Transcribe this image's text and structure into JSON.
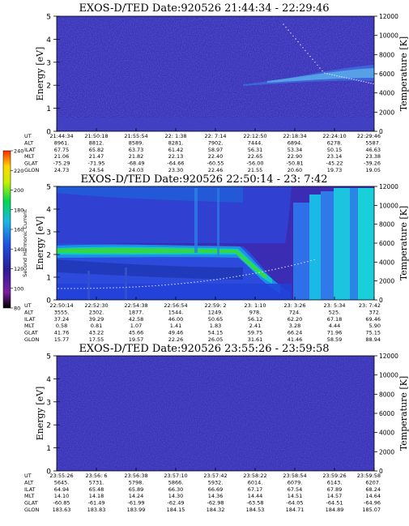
{
  "chart_data": [
    {
      "type": "heatmap",
      "title": "EXOS-D/TED   Date:920526  21:44:34 - 22:29:46",
      "ylabel": "Energy [eV]",
      "y2label": "Temperature [K]",
      "ylim": [
        0,
        5
      ],
      "y2lim": [
        0,
        12000
      ],
      "yticks": [
        "0",
        "1",
        "2",
        "3",
        "4",
        "5"
      ],
      "y2ticks": [
        "0",
        "2000",
        "4000",
        "6000",
        "8000",
        "10000",
        "12000"
      ],
      "table": {
        "labels": [
          "UT",
          "ALT",
          "ILAT",
          "MLT",
          "GLAT",
          "GLON"
        ],
        "columns": [
          [
            "21:44:34",
            "8961.",
            "67.75",
            "21.06",
            "-75.29",
            "24.73"
          ],
          [
            "21:50:18",
            "8812.",
            "65.82",
            "21.47",
            "-71.95",
            "24.54"
          ],
          [
            "21:55:54",
            "8589.",
            "63.73",
            "21.82",
            "-68.49",
            "24.03"
          ],
          [
            "22: 1:38",
            "8281.",
            "61.42",
            "22.13",
            "-64.66",
            "23.30"
          ],
          [
            "22: 7:14",
            "7902.",
            "58.97",
            "22.40",
            "-60.55",
            "22.46"
          ],
          [
            "22:12:50",
            "7444.",
            "56.31",
            "22.65",
            "-56.00",
            "21.55"
          ],
          [
            "22:18:34",
            "6894.",
            "53.34",
            "22.90",
            "-50.81",
            "20.60"
          ],
          [
            "22:24:10",
            "6278.",
            "50.15",
            "23.14",
            "-45.22",
            "19.73"
          ],
          [
            "22:29:46",
            "5587.",
            "46.63",
            "23.38",
            "-39.26",
            "19.05"
          ]
        ]
      }
    },
    {
      "type": "heatmap",
      "title": "EXOS-D/TED   Date:920526  22:50:14 - 23: 7:42",
      "ylabel": "Energy [eV]",
      "y2label": "Temperature [K]",
      "ylim": [
        0,
        5
      ],
      "y2lim": [
        0,
        12000
      ],
      "yticks": [
        "0",
        "1",
        "2",
        "3",
        "4",
        "5"
      ],
      "y2ticks": [
        "0",
        "2000",
        "4000",
        "6000",
        "8000",
        "10000",
        "12000"
      ],
      "colorbar": {
        "label": "Second Harmonic Current",
        "ticks": [
          "80",
          "100",
          "120",
          "140",
          "160",
          "180",
          "200",
          "220",
          "240"
        ],
        "colors": [
          "#000000",
          "#7a1fa0",
          "#2a1e96",
          "#1f4fe0",
          "#19b8e6",
          "#00d84e",
          "#c8f000",
          "#ffd700",
          "#ff2a00"
        ]
      },
      "table": {
        "labels": [
          "UT",
          "ALT",
          "ILAT",
          "MLT",
          "GLAT",
          "GLON"
        ],
        "columns": [
          [
            "22:50:14",
            "3555.",
            "37.24",
            "0.58",
            "41.76",
            "15.77"
          ],
          [
            "22:52:30",
            "2302.",
            "39.29",
            "0.81",
            "43.22",
            "17.55"
          ],
          [
            "22:54:38",
            "1877.",
            "42.58",
            "1.07",
            "45.66",
            "19.57"
          ],
          [
            "22:56:54",
            "1544.",
            "46.00",
            "1.41",
            "49.46",
            "22.26"
          ],
          [
            "22:59: 2",
            "1249.",
            "50.65",
            "1.83",
            "54.15",
            "26.05"
          ],
          [
            "23: 1:10",
            "978.",
            "56.12",
            "2.41",
            "59.75",
            "31.61"
          ],
          [
            "23: 3:26",
            "724.",
            "62.20",
            "3.28",
            "66.24",
            "41.46"
          ],
          [
            "23: 5:34",
            "525.",
            "67.18",
            "4.44",
            "71.96",
            "58.59"
          ],
          [
            "23: 7:42",
            "372.",
            "69.46",
            "5.90",
            "75.15",
            "88.94"
          ]
        ]
      }
    },
    {
      "type": "heatmap",
      "title": "EXOS-D/TED   Date:920526  23:55:26 - 23:59:58",
      "ylabel": "Energy [eV]",
      "y2label": "Temperature [K]",
      "ylim": [
        0,
        5
      ],
      "y2lim": [
        0,
        12000
      ],
      "yticks": [
        "0",
        "1",
        "2",
        "3",
        "4",
        "5"
      ],
      "y2ticks": [
        "0",
        "2000",
        "4000",
        "6000",
        "8000",
        "10000",
        "12000"
      ],
      "table": {
        "labels": [
          "UT",
          "ALT",
          "ILAT",
          "MLT",
          "GLAT",
          "GLON"
        ],
        "columns": [
          [
            "23:55:26",
            "5645.",
            "64.94",
            "14.10",
            "-60.85",
            "183.63"
          ],
          [
            "23:56: 6",
            "5731.",
            "65.48",
            "14.18",
            "-61.49",
            "183.83"
          ],
          [
            "23:56:38",
            "5798.",
            "65.89",
            "14.24",
            "-61.99",
            "183.99"
          ],
          [
            "23:57:10",
            "5866.",
            "66.30",
            "14.30",
            "-62.49",
            "184.15"
          ],
          [
            "23:57:42",
            "5932.",
            "66.69",
            "14.36",
            "-62.98",
            "184.32"
          ],
          [
            "23:58:22",
            "6014.",
            "67.17",
            "14.44",
            "-63.58",
            "184.53"
          ],
          [
            "23:58:54",
            "6079.",
            "67.54",
            "14.51",
            "-64.05",
            "184.71"
          ],
          [
            "23:59:26",
            "6143.",
            "67.89",
            "14.57",
            "-64.51",
            "184.89"
          ],
          [
            "23:59:58",
            "6207.",
            "68.24",
            "14.64",
            "-64.96",
            "185.07"
          ]
        ]
      }
    }
  ]
}
